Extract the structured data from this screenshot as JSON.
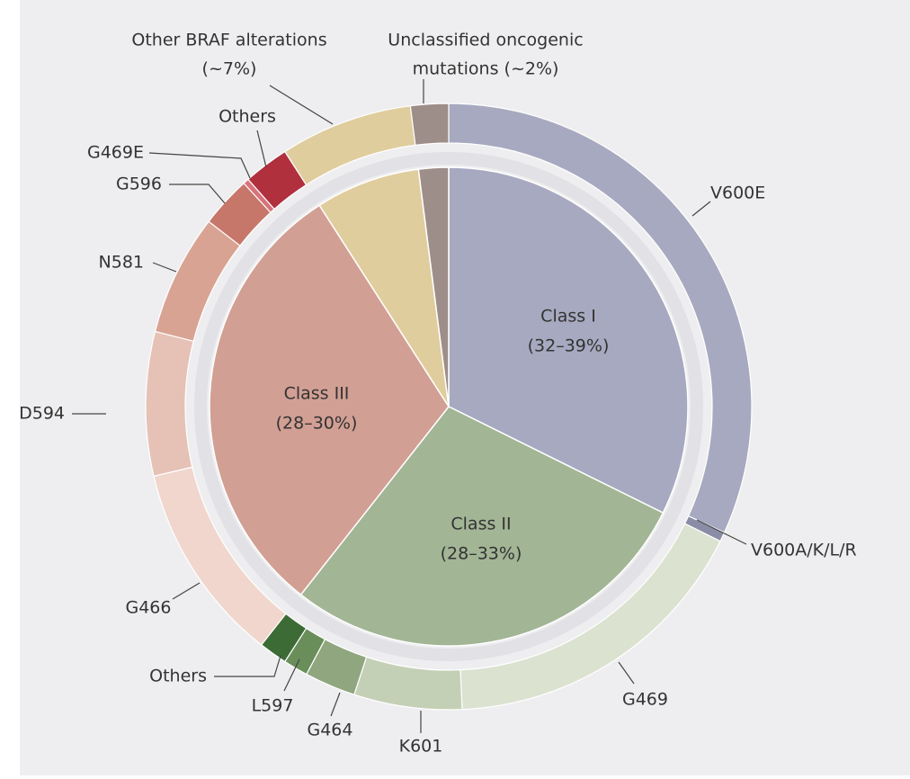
{
  "chart_data": {
    "type": "pie",
    "inner": [
      {
        "name": "Class I",
        "value_label": "(32–39%)",
        "value": 32,
        "color": "#a7a9c0"
      },
      {
        "name": "Class II",
        "value_label": "(28–33%)",
        "value": 28,
        "color": "#a2b595"
      },
      {
        "name": "Class III",
        "value_label": "(28–30%)",
        "value": 30,
        "color": "#d29f94"
      },
      {
        "value": 7,
        "color": "#e0cd9e"
      },
      {
        "value": 2,
        "color": "#9e8e8a"
      }
    ],
    "outer": [
      {
        "label": "V600E",
        "value": 31.5,
        "color": "#a7a9c0"
      },
      {
        "label": "V600A/K/L/R",
        "value": 0.5,
        "color": "#8b8da6"
      },
      {
        "label": "G469",
        "value": 16.8,
        "color": "#dbe2d0"
      },
      {
        "label": "K601",
        "value": 5.7,
        "color": "#c4d0b5"
      },
      {
        "label": "G464",
        "value": 2.7,
        "color": "#8fa67f"
      },
      {
        "label": "L597",
        "value": 1.3,
        "color": "#6a8e5a"
      },
      {
        "label": "Others",
        "value": 1.5,
        "color": "#3d6b35"
      },
      {
        "label": "G466",
        "value": 10.6,
        "color": "#f0d6cc"
      },
      {
        "label": "D594",
        "value": 7.6,
        "color": "#e6c1b6"
      },
      {
        "label": "N581",
        "value": 6.4,
        "color": "#d9a393"
      },
      {
        "label": "G596",
        "value": 2.7,
        "color": "#c7766a"
      },
      {
        "label": "G469E",
        "value": 0.3,
        "color": "#d9727a"
      },
      {
        "label": "Others",
        "value": 2.4,
        "color": "#b0303e"
      },
      {
        "label_lines": [
          "Other BRAF alterations",
          "(~7%)"
        ],
        "value": 7,
        "color": "#e0cd9e"
      },
      {
        "label_lines": [
          "Unclassified oncogenic",
          "mutations (~2%)"
        ],
        "value": 2,
        "color": "#9e8e8a"
      }
    ]
  }
}
